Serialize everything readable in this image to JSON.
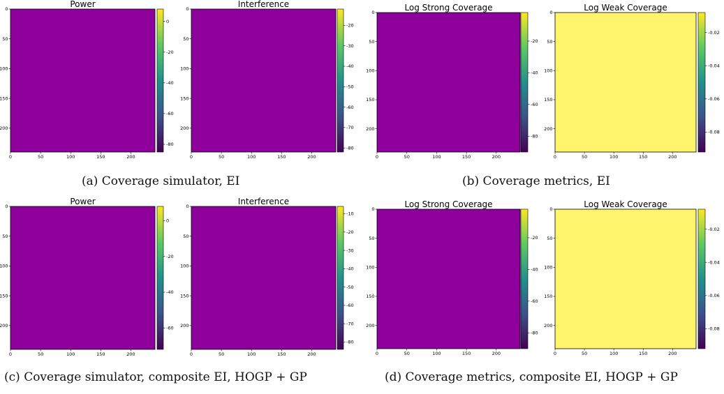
{
  "captions": [
    "(a) Coverage simulator, EI",
    "(b) Coverage metrics, EI",
    "(c) Coverage simulator, composite EI, HOGP + GP",
    "(d) Coverage metrics, composite EI, HOGP + GP"
  ],
  "colormap": [
    "#440154",
    "#3b528b",
    "#21918c",
    "#5ec962",
    "#fde725"
  ],
  "chart_data": [
    {
      "type": "heatmap",
      "panel": "a",
      "title": "Power",
      "xticks": [
        0,
        50,
        100,
        150,
        200
      ],
      "yticks": [
        0,
        50,
        100,
        150,
        200
      ],
      "xlim": [
        0,
        240
      ],
      "ylim": [
        240,
        0
      ],
      "colorbar_ticks": [
        0,
        -20,
        -40,
        -60,
        -80
      ],
      "colorbar_range": [
        -85,
        8
      ]
    },
    {
      "type": "heatmap",
      "panel": "a",
      "title": "Interference",
      "xticks": [
        0,
        50,
        100,
        150,
        200
      ],
      "yticks": [
        0,
        50,
        100,
        150,
        200
      ],
      "xlim": [
        0,
        240
      ],
      "ylim": [
        240,
        0
      ],
      "colorbar_ticks": [
        -20,
        -30,
        -40,
        -50,
        -60,
        -70,
        -80
      ],
      "colorbar_range": [
        -82,
        -12
      ]
    },
    {
      "type": "heatmap",
      "panel": "b",
      "title": "Log Strong Coverage",
      "xticks": [
        0,
        50,
        100,
        150,
        200
      ],
      "yticks": [
        0,
        50,
        100,
        150,
        200
      ],
      "xlim": [
        0,
        240
      ],
      "ylim": [
        240,
        0
      ],
      "colorbar_ticks": [
        -20,
        -40,
        -60,
        -80
      ],
      "colorbar_range": [
        -90,
        -2
      ]
    },
    {
      "type": "heatmap",
      "panel": "b",
      "title": "Log Weak Coverage",
      "xticks": [
        0,
        50,
        100,
        150,
        200
      ],
      "yticks": [
        0,
        50,
        100,
        150,
        200
      ],
      "xlim": [
        0,
        240
      ],
      "ylim": [
        240,
        0
      ],
      "colorbar_ticks": [
        -0.02,
        -0.04,
        -0.06,
        -0.08
      ],
      "colorbar_range": [
        -0.092,
        -0.008
      ]
    },
    {
      "type": "heatmap",
      "panel": "c",
      "title": "Power",
      "xticks": [
        0,
        50,
        100,
        150,
        200
      ],
      "yticks": [
        0,
        50,
        100,
        150,
        200
      ],
      "xlim": [
        0,
        240
      ],
      "ylim": [
        240,
        0
      ],
      "colorbar_ticks": [
        0,
        -20,
        -40,
        -60
      ],
      "colorbar_range": [
        -72,
        8
      ]
    },
    {
      "type": "heatmap",
      "panel": "c",
      "title": "Interference",
      "xticks": [
        0,
        50,
        100,
        150,
        200
      ],
      "yticks": [
        0,
        50,
        100,
        150,
        200
      ],
      "xlim": [
        0,
        240
      ],
      "ylim": [
        240,
        0
      ],
      "colorbar_ticks": [
        -10,
        -20,
        -30,
        -40,
        -50,
        -60,
        -70,
        -80
      ],
      "colorbar_range": [
        -84,
        -6
      ]
    },
    {
      "type": "heatmap",
      "panel": "d",
      "title": "Log Strong Coverage",
      "xticks": [
        0,
        50,
        100,
        150,
        200
      ],
      "yticks": [
        0,
        50,
        100,
        150,
        200
      ],
      "xlim": [
        0,
        240
      ],
      "ylim": [
        240,
        0
      ],
      "colorbar_ticks": [
        -20,
        -40,
        -60,
        -80
      ],
      "colorbar_range": [
        -90,
        -2
      ]
    },
    {
      "type": "heatmap",
      "panel": "d",
      "title": "Log Weak Coverage",
      "xticks": [
        0,
        50,
        100,
        150,
        200
      ],
      "yticks": [
        0,
        50,
        100,
        150,
        200
      ],
      "xlim": [
        0,
        240
      ],
      "ylim": [
        240,
        0
      ],
      "colorbar_ticks": [
        -0.02,
        -0.04,
        -0.06,
        -0.08
      ],
      "colorbar_range": [
        -0.092,
        -0.008
      ]
    }
  ]
}
